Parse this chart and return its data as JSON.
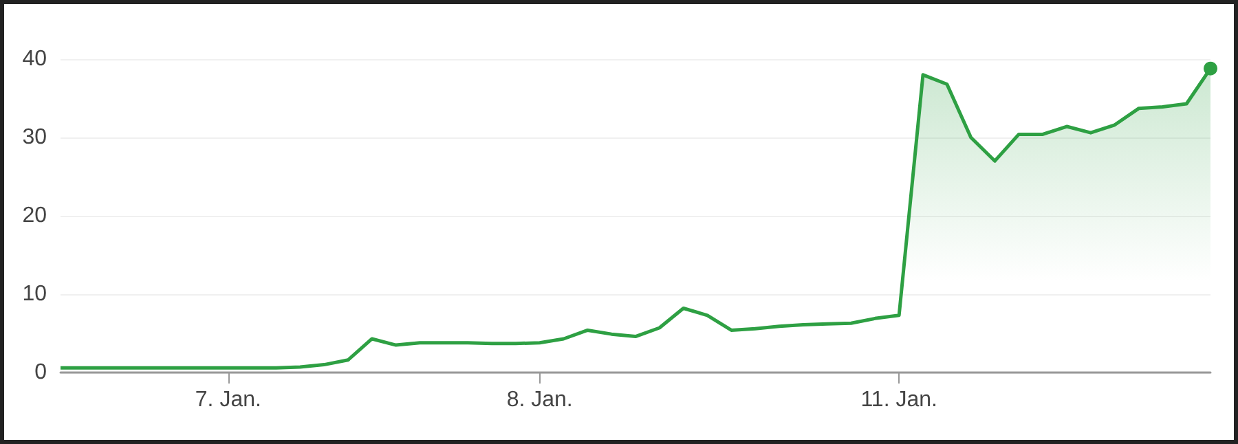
{
  "chart_data": {
    "type": "area",
    "categories": [
      null,
      null,
      null,
      null,
      null,
      null,
      null,
      "7. Jan.",
      null,
      null,
      null,
      null,
      null,
      null,
      null,
      null,
      null,
      null,
      null,
      null,
      "8. Jan.",
      null,
      null,
      null,
      null,
      null,
      null,
      null,
      null,
      null,
      null,
      null,
      null,
      null,
      null,
      "11. Jan.",
      null,
      null,
      null,
      null,
      null,
      null,
      null,
      null,
      null,
      null,
      null,
      null,
      null
    ],
    "series": [
      {
        "color": "#2ea043",
        "values": [
          0.6,
          0.6,
          0.6,
          0.6,
          0.6,
          0.6,
          0.6,
          0.6,
          0.6,
          0.6,
          0.7,
          1.0,
          1.6,
          4.3,
          3.5,
          3.8,
          3.8,
          3.8,
          3.7,
          3.7,
          3.8,
          4.3,
          5.4,
          4.9,
          4.6,
          5.7,
          8.2,
          7.3,
          5.4,
          5.6,
          5.9,
          6.1,
          6.2,
          6.3,
          6.9,
          7.3,
          38.0,
          36.8,
          30.0,
          27.0,
          30.4,
          30.4,
          31.4,
          30.6,
          31.6,
          33.7,
          33.9,
          34.3,
          38.8
        ]
      }
    ],
    "ylim": [
      0,
      40
    ],
    "yticks": [
      0,
      10,
      20,
      30,
      40
    ],
    "grid": "y",
    "line_style": "solid"
  }
}
